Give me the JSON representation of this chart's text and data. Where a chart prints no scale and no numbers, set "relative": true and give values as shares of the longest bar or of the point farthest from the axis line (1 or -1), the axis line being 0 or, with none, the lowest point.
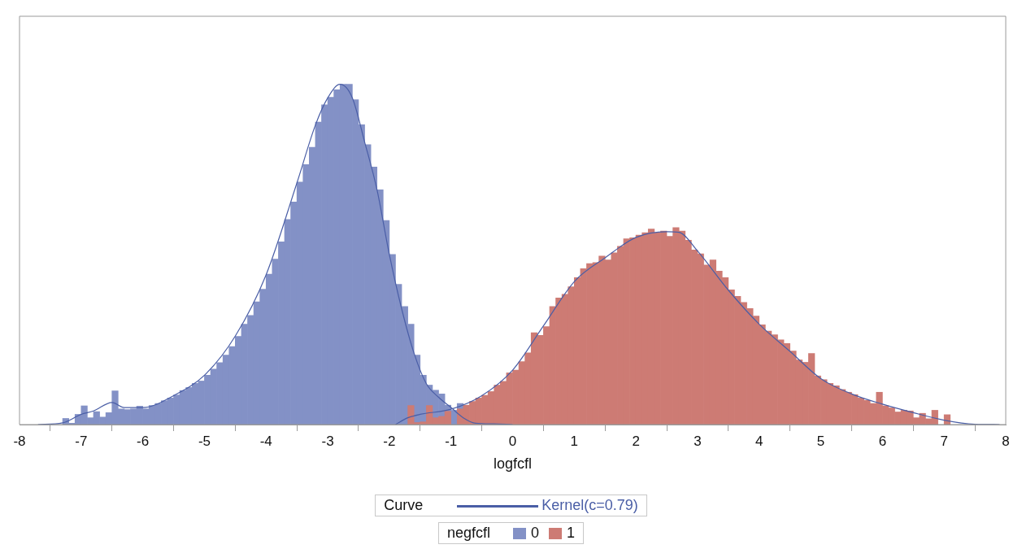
{
  "chart_data": {
    "type": "histogram",
    "xlabel": "logfcfl",
    "relative": true,
    "xlim": [
      -8,
      8
    ],
    "xticks": [
      -8,
      -7,
      -6,
      -5,
      -4,
      -3,
      -2,
      -1,
      0,
      1,
      2,
      3,
      4,
      5,
      6,
      7,
      8
    ],
    "grid": false,
    "legend": "bottom",
    "legend_title": "negfcfl",
    "annotations": [
      "Curve"
    ],
    "bins": [
      -7.3,
      -7.2,
      -7.1,
      -7.0,
      -6.9,
      -6.8,
      -6.7,
      -6.6,
      -6.5,
      -6.4,
      -6.3,
      -6.2,
      -6.1,
      -6.0,
      -5.9,
      -5.8,
      -5.7,
      -5.6,
      -5.5,
      -5.4,
      -5.3,
      -5.2,
      -5.1,
      -5.0,
      -4.9,
      -4.8,
      -4.7,
      -4.6,
      -4.5,
      -4.4,
      -4.3,
      -4.2,
      -4.1,
      -4.0,
      -3.9,
      -3.8,
      -3.7,
      -3.6,
      -3.5,
      -3.4,
      -3.3,
      -3.2,
      -3.1,
      -3.0,
      -2.9,
      -2.8,
      -2.7,
      -2.6,
      -2.5,
      -2.4,
      -2.3,
      -2.2,
      -2.1,
      -2.0,
      -1.9,
      -1.8,
      -1.7,
      -1.6,
      -1.5,
      -1.4,
      -1.3,
      -1.2,
      -1.1,
      -1.0,
      -0.9,
      -0.8,
      -0.7,
      -0.6,
      -0.5,
      -0.4,
      -0.3,
      -0.2,
      -0.1,
      0.0,
      0.1,
      0.2,
      0.3,
      0.4,
      0.5,
      0.6,
      0.7,
      0.8,
      0.9,
      1.0,
      1.1,
      1.2,
      1.3,
      1.4,
      1.5,
      1.6,
      1.7,
      1.8,
      1.9,
      2.0,
      2.1,
      2.2,
      2.3,
      2.4,
      2.5,
      2.6,
      2.7,
      2.8,
      2.9,
      3.0,
      3.1,
      3.2,
      3.3,
      3.4,
      3.5,
      3.6,
      3.7,
      3.8,
      3.9,
      4.0,
      4.1,
      4.2,
      4.3,
      4.4,
      4.5,
      4.6,
      4.7,
      4.8,
      4.9,
      5.0,
      5.1,
      5.2,
      5.3,
      5.4,
      5.5,
      5.6,
      5.7,
      5.8,
      5.9,
      6.0,
      6.1,
      6.2,
      6.3,
      6.4,
      6.5,
      6.6,
      6.7,
      6.8,
      6.9,
      7.0,
      7.1,
      7.2,
      7.3
    ],
    "series": [
      {
        "name": "0",
        "color": "#8391c6",
        "values": [
          0.018,
          0.004,
          0.03,
          0.055,
          0.02,
          0.038,
          0.022,
          0.035,
          0.099,
          0.046,
          0.044,
          0.046,
          0.054,
          0.046,
          0.056,
          0.062,
          0.07,
          0.078,
          0.087,
          0.1,
          0.109,
          0.121,
          0.128,
          0.145,
          0.163,
          0.182,
          0.204,
          0.229,
          0.259,
          0.295,
          0.321,
          0.361,
          0.398,
          0.442,
          0.486,
          0.537,
          0.603,
          0.654,
          0.713,
          0.764,
          0.815,
          0.889,
          0.94,
          0.962,
          0.984,
          1,
          1,
          0.955,
          0.881,
          0.823,
          0.757,
          0.69,
          0.6,
          0.5,
          0.412,
          0.347,
          0.295,
          0.204,
          0.145,
          0.116,
          0.101,
          0.09,
          0.057,
          0.042,
          0.062,
          null,
          null,
          null,
          null,
          null,
          null,
          null,
          null,
          null,
          null,
          null,
          null,
          null,
          null,
          null,
          null,
          null,
          null,
          null,
          null,
          null,
          null,
          null,
          null,
          null,
          null,
          null,
          null,
          null,
          null,
          null,
          null,
          null,
          null,
          null,
          null,
          null,
          null,
          null,
          null,
          null,
          null,
          null,
          null,
          null,
          null,
          null,
          null,
          null,
          null,
          null,
          null,
          null,
          null,
          null,
          null,
          null,
          null,
          null,
          null,
          null,
          null,
          null,
          null,
          null,
          null,
          null,
          null,
          null,
          null,
          null,
          null,
          null,
          null,
          null,
          null,
          null,
          null,
          null,
          null,
          null
        ]
      },
      {
        "name": "1",
        "color": "#cd7b74",
        "values": [
          null,
          null,
          null,
          null,
          null,
          null,
          null,
          null,
          null,
          null,
          null,
          null,
          null,
          null,
          null,
          null,
          null,
          null,
          null,
          null,
          null,
          null,
          null,
          null,
          null,
          null,
          null,
          null,
          null,
          null,
          null,
          null,
          null,
          null,
          null,
          null,
          null,
          null,
          null,
          null,
          null,
          null,
          null,
          null,
          null,
          null,
          null,
          null,
          null,
          null,
          null,
          null,
          null,
          null,
          null,
          null,
          0.056,
          0.006,
          0.008,
          0.056,
          0.02,
          0.024,
          0.039,
          null,
          0.046,
          0.057,
          0.068,
          0.078,
          0.086,
          0.097,
          0.116,
          0.127,
          0.152,
          0.16,
          0.185,
          0.211,
          0.27,
          0.262,
          0.288,
          0.347,
          0.372,
          0.383,
          0.405,
          0.432,
          0.458,
          0.473,
          0.476,
          0.495,
          0.484,
          0.505,
          0.524,
          0.546,
          0.549,
          0.557,
          0.564,
          0.575,
          0.564,
          0.569,
          0.553,
          0.579,
          0.569,
          0.542,
          0.513,
          0.502,
          0.469,
          0.484,
          0.451,
          0.432,
          0.396,
          0.377,
          0.359,
          0.341,
          0.319,
          0.293,
          0.275,
          0.264,
          0.249,
          0.238,
          0.216,
          0.19,
          0.183,
          0.209,
          0.143,
          0.132,
          0.121,
          0.114,
          0.103,
          0.095,
          0.088,
          0.078,
          0.071,
          0.062,
          0.095,
          0.055,
          0.049,
          0.037,
          0.042,
          0.04,
          0.02,
          0.033,
          0.017,
          0.042,
          null,
          0.029,
          null,
          null
        ]
      },
      {
        "type": "line",
        "name": "Kernel(c=0.79)",
        "color": "#4a5ea6",
        "x": [
          -7.7,
          -7.3,
          -7.0,
          -6.8,
          -6.5,
          -6.3,
          -6.0,
          -5.5,
          -5.0,
          -4.5,
          -4.0,
          -3.5,
          -3.2,
          -3.0,
          -2.8,
          -2.6,
          -2.4,
          -2.2,
          -2.0,
          -1.8,
          -1.6,
          -1.4,
          -1.2,
          -1.0,
          -0.8,
          -0.6,
          -0.3,
          0.0
        ],
        "values": [
          0,
          0.005,
          0.03,
          0.04,
          0.065,
          0.05,
          0.05,
          0.085,
          0.145,
          0.26,
          0.44,
          0.71,
          0.88,
          0.96,
          1,
          0.96,
          0.83,
          0.69,
          0.5,
          0.34,
          0.21,
          0.12,
          0.08,
          0.05,
          0.02,
          0.004,
          0.002,
          0
        ]
      },
      {
        "type": "line",
        "color": "#4a5ea6",
        "x": [
          -1.9,
          -1.7,
          -1.5,
          -1.0,
          -0.5,
          0.0,
          0.5,
          1.0,
          1.5,
          2.0,
          2.5,
          2.7,
          3.0,
          3.5,
          4.0,
          4.5,
          5.0,
          5.5,
          6.0,
          6.5,
          7.0,
          7.5,
          7.9
        ],
        "values": [
          0,
          0.02,
          0.03,
          0.045,
          0.085,
          0.16,
          0.29,
          0.42,
          0.49,
          0.55,
          0.567,
          0.565,
          0.51,
          0.395,
          0.295,
          0.215,
          0.135,
          0.09,
          0.06,
          0.035,
          0.013,
          0.001,
          0
        ]
      }
    ]
  }
}
